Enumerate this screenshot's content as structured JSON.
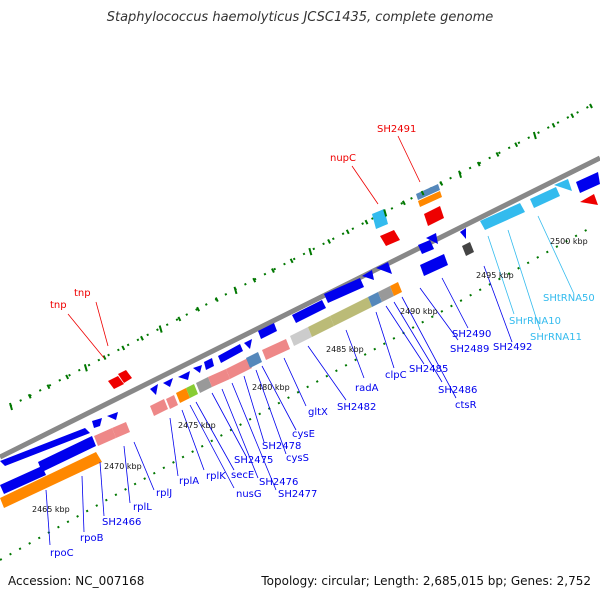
{
  "title": "Staphylococcus haemolyticus JCSC1435, complete genome",
  "footer": {
    "accession": "Accession: NC_007168",
    "summary": "Topology: circular; Length: 2,685,015 bp; Genes: 2,752"
  },
  "colors": {
    "gene": "#0000ee",
    "rna": "#33bbee",
    "transposon": "#ee0000",
    "pink": "#ee8888",
    "orange": "#ff8800",
    "olive": "#bbbb77",
    "gray": "#999999",
    "backbone": "#888888",
    "tick": "#007700"
  },
  "kbp_labels": [
    "2465 kbp",
    "2470 kbp",
    "2475 kbp",
    "2480 kbp",
    "2485 kbp",
    "2490 kbp",
    "2495 kbp",
    "2500 kbp"
  ],
  "gene_labels": {
    "blue": [
      "rpoC",
      "rpoB",
      "SH2466",
      "rplL",
      "rplJ",
      "rplA",
      "rplK",
      "nusG",
      "secE",
      "SH2475",
      "SH2476",
      "SH2477",
      "SH2478",
      "cysS",
      "cysE",
      "gltX",
      "SH2482",
      "radA",
      "clpC",
      "SH2485",
      "SH2486",
      "ctsR",
      "SH2489",
      "SH2490",
      "SH2492"
    ],
    "cyan": [
      "SHrRNA10",
      "SHrRNA11",
      "SHtRNA50"
    ],
    "red": [
      "tnp",
      "tnp",
      "nupC",
      "SH2491"
    ]
  }
}
